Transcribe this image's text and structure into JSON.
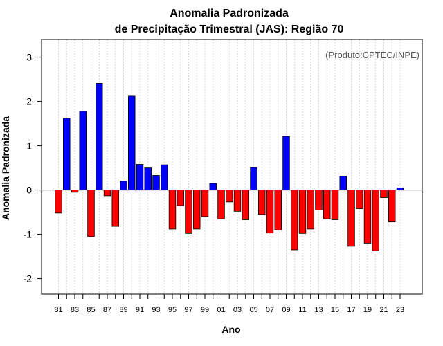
{
  "chart_data": {
    "type": "bar",
    "title": "Anomalia Padronizada",
    "subtitle": "de Precipitação Trimestral (JAS): Região 70",
    "xlabel": "Ano",
    "ylabel": "Anomalia Padronizada",
    "credit": "(Produto:CPTEC/INPE)",
    "ylim": [
      -2.35,
      3.4
    ],
    "yticks": [
      -2,
      -1,
      0,
      1,
      2,
      3
    ],
    "x": [
      1981,
      1982,
      1983,
      1984,
      1985,
      1986,
      1987,
      1988,
      1989,
      1990,
      1991,
      1992,
      1993,
      1994,
      1995,
      1996,
      1997,
      1998,
      1999,
      2000,
      2001,
      2002,
      2003,
      2004,
      2005,
      2006,
      2007,
      2008,
      2009,
      2010,
      2011,
      2012,
      2013,
      2014,
      2015,
      2016,
      2017,
      2018,
      2019,
      2020,
      2021,
      2022,
      2023
    ],
    "tick_labels": [
      "81",
      "83",
      "85",
      "87",
      "89",
      "91",
      "93",
      "95",
      "97",
      "99",
      "01",
      "03",
      "05",
      "07",
      "09",
      "11",
      "13",
      "15",
      "17",
      "19",
      "21",
      "23"
    ],
    "tick_years": [
      1981,
      1983,
      1985,
      1987,
      1989,
      1991,
      1993,
      1995,
      1997,
      1999,
      2001,
      2003,
      2005,
      2007,
      2009,
      2011,
      2013,
      2015,
      2017,
      2019,
      2021,
      2023
    ],
    "values": [
      -0.52,
      1.62,
      -0.05,
      1.78,
      -1.05,
      2.41,
      -0.13,
      -0.82,
      0.2,
      2.12,
      0.58,
      0.5,
      0.33,
      0.57,
      -0.88,
      -0.35,
      -0.98,
      -0.88,
      -0.6,
      0.15,
      -0.65,
      -0.27,
      -0.48,
      -0.67,
      0.51,
      -0.55,
      -0.97,
      -0.9,
      1.21,
      -1.35,
      -0.98,
      -0.88,
      -0.45,
      -0.65,
      -0.67,
      0.31,
      -1.27,
      -0.42,
      -1.2,
      -1.37,
      -0.17,
      -0.72,
      0.05
    ],
    "positive_color": "#0000ff",
    "negative_color": "#ff0000",
    "grid": true
  }
}
